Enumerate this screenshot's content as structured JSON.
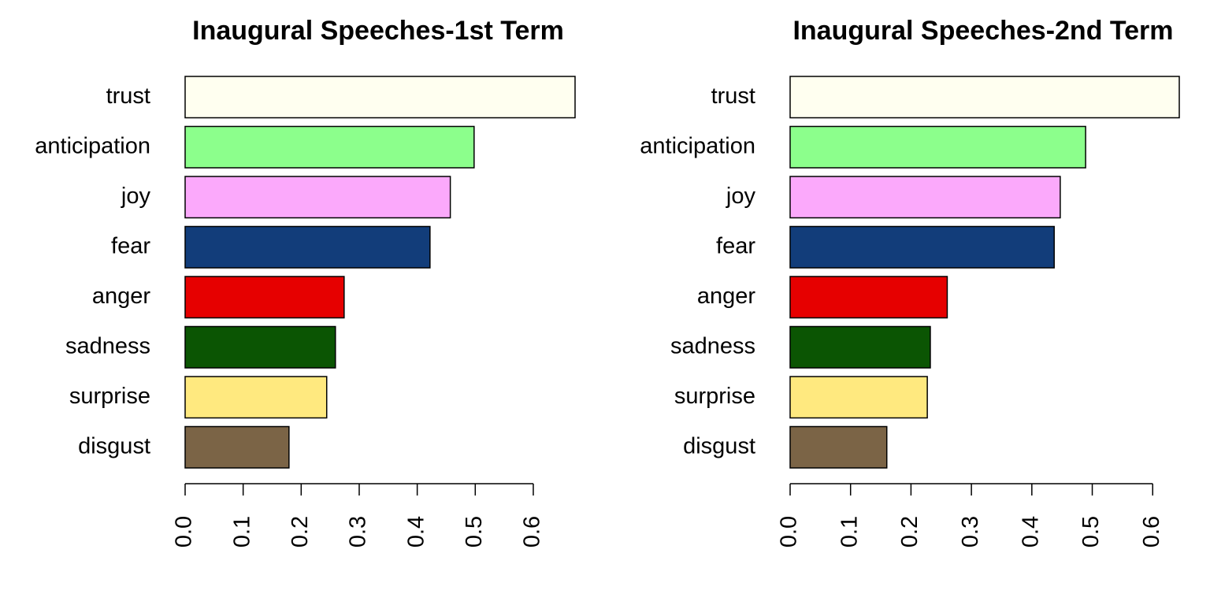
{
  "chart_data": [
    {
      "type": "bar",
      "orientation": "horizontal",
      "title": "Inaugural Speeches-1st Term",
      "categories": [
        "trust",
        "anticipation",
        "joy",
        "fear",
        "anger",
        "sadness",
        "surprise",
        "disgust"
      ],
      "values": [
        0.672,
        0.498,
        0.457,
        0.422,
        0.274,
        0.259,
        0.244,
        0.179
      ],
      "colors": [
        "#FFFFF0",
        "#8CFF8C",
        "#FBA9FB",
        "#123D7A",
        "#E60000",
        "#0B5503",
        "#FFE97F",
        "#7B6446"
      ],
      "xlim": [
        0,
        0.672
      ],
      "xticks": [
        {
          "value": 0,
          "label": "0.0"
        },
        {
          "value": 0.1,
          "label": "0.1"
        },
        {
          "value": 0.2,
          "label": "0.2"
        },
        {
          "value": 0.3,
          "label": "0.3"
        },
        {
          "value": 0.4,
          "label": "0.4"
        },
        {
          "value": 0.5,
          "label": "0.5"
        },
        {
          "value": 0.6,
          "label": "0.6"
        }
      ]
    },
    {
      "type": "bar",
      "orientation": "horizontal",
      "title": "Inaugural Speeches-2nd Term",
      "categories": [
        "trust",
        "anticipation",
        "joy",
        "fear",
        "anger",
        "sadness",
        "surprise",
        "disgust"
      ],
      "values": [
        0.644,
        0.489,
        0.447,
        0.437,
        0.26,
        0.232,
        0.227,
        0.16
      ],
      "colors": [
        "#FFFFF0",
        "#8CFF8C",
        "#FBA9FB",
        "#123D7A",
        "#E60000",
        "#0B5503",
        "#FFE97F",
        "#7B6446"
      ],
      "xlim": [
        0,
        0.644
      ],
      "xticks": [
        {
          "value": 0,
          "label": "0.0"
        },
        {
          "value": 0.1,
          "label": "0.1"
        },
        {
          "value": 0.2,
          "label": "0.2"
        },
        {
          "value": 0.3,
          "label": "0.3"
        },
        {
          "value": 0.4,
          "label": "0.4"
        },
        {
          "value": 0.5,
          "label": "0.5"
        },
        {
          "value": 0.6,
          "label": "0.6"
        }
      ]
    }
  ]
}
